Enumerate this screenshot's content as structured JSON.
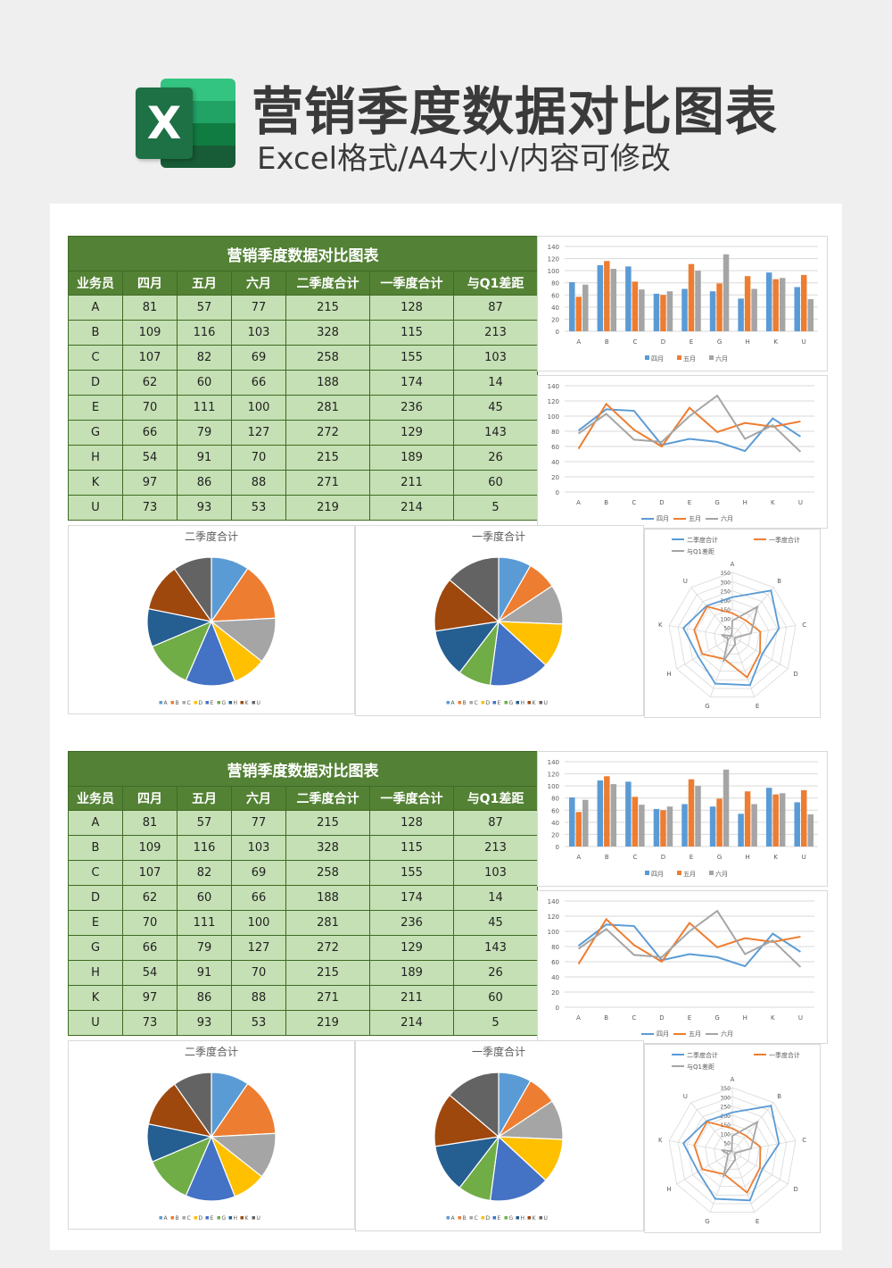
{
  "header": {
    "title": "营销季度数据对比图表",
    "subtitle": "Excel格式/A4大小/内容可修改",
    "logo_letter": "X",
    "logo_colors": [
      "#33c481",
      "#21a366",
      "#107c41",
      "#185c37"
    ]
  },
  "table": {
    "title": "营销季度数据对比图表",
    "columns": [
      "业务员",
      "四月",
      "五月",
      "六月",
      "二季度合计",
      "一季度合计",
      "与Q1差距"
    ],
    "rows": [
      [
        "A",
        "81",
        "57",
        "77",
        "215",
        "128",
        "87"
      ],
      [
        "B",
        "109",
        "116",
        "103",
        "328",
        "115",
        "213"
      ],
      [
        "C",
        "107",
        "82",
        "69",
        "258",
        "155",
        "103"
      ],
      [
        "D",
        "62",
        "60",
        "66",
        "188",
        "174",
        "14"
      ],
      [
        "E",
        "70",
        "111",
        "100",
        "281",
        "236",
        "45"
      ],
      [
        "G",
        "66",
        "79",
        "127",
        "272",
        "129",
        "143"
      ],
      [
        "H",
        "54",
        "91",
        "70",
        "215",
        "189",
        "26"
      ],
      [
        "K",
        "97",
        "86",
        "88",
        "271",
        "211",
        "60"
      ],
      [
        "U",
        "73",
        "93",
        "53",
        "219",
        "214",
        "5"
      ]
    ]
  },
  "colors": {
    "series": [
      "#5b9bd5",
      "#ed7d31",
      "#a5a5a5"
    ],
    "pie": [
      "#5b9bd5",
      "#ed7d31",
      "#a5a5a5",
      "#ffc000",
      "#4472c4",
      "#70ad47",
      "#255e91",
      "#9e480e",
      "#636363"
    ],
    "table_header": "#538135",
    "table_cell": "#c5e0b4"
  },
  "chart_data": [
    {
      "type": "bar",
      "categories": [
        "A",
        "B",
        "C",
        "D",
        "E",
        "G",
        "H",
        "K",
        "U"
      ],
      "series": [
        {
          "name": "四月",
          "values": [
            81,
            109,
            107,
            62,
            70,
            66,
            54,
            97,
            73
          ]
        },
        {
          "name": "五月",
          "values": [
            57,
            116,
            82,
            60,
            111,
            79,
            91,
            86,
            93
          ]
        },
        {
          "name": "六月",
          "values": [
            77,
            103,
            69,
            66,
            100,
            127,
            70,
            88,
            53
          ]
        }
      ],
      "yticks": [
        "0",
        "20",
        "40",
        "60",
        "80",
        "100",
        "120",
        "140"
      ],
      "ylim": [
        0,
        140
      ],
      "grid": true,
      "legend": "bottom"
    },
    {
      "type": "line",
      "categories": [
        "A",
        "B",
        "C",
        "D",
        "E",
        "G",
        "H",
        "K",
        "U"
      ],
      "series": [
        {
          "name": "四月",
          "values": [
            81,
            109,
            107,
            62,
            70,
            66,
            54,
            97,
            73
          ]
        },
        {
          "name": "五月",
          "values": [
            57,
            116,
            82,
            60,
            111,
            79,
            91,
            86,
            93
          ]
        },
        {
          "name": "六月",
          "values": [
            77,
            103,
            69,
            66,
            100,
            127,
            70,
            88,
            53
          ]
        }
      ],
      "yticks": [
        "0",
        "20",
        "40",
        "60",
        "80",
        "100",
        "120",
        "140"
      ],
      "ylim": [
        0,
        140
      ],
      "grid": true,
      "legend": "bottom"
    },
    {
      "type": "pie",
      "title": "二季度合计",
      "categories": [
        "A",
        "B",
        "C",
        "D",
        "E",
        "G",
        "H",
        "K",
        "U"
      ],
      "values": [
        215,
        328,
        258,
        188,
        281,
        272,
        215,
        271,
        219
      ],
      "legend": "bottom"
    },
    {
      "type": "pie",
      "title": "一季度合计",
      "categories": [
        "A",
        "B",
        "C",
        "D",
        "E",
        "G",
        "H",
        "K",
        "U"
      ],
      "values": [
        128,
        115,
        155,
        174,
        236,
        129,
        189,
        211,
        214
      ],
      "legend": "bottom"
    },
    {
      "type": "radar",
      "categories": [
        "A",
        "B",
        "C",
        "D",
        "E",
        "G",
        "H",
        "K",
        "U"
      ],
      "series": [
        {
          "name": "二季度合计",
          "values": [
            215,
            328,
            258,
            188,
            281,
            272,
            215,
            271,
            219
          ]
        },
        {
          "name": "一季度合计",
          "values": [
            128,
            115,
            155,
            174,
            236,
            129,
            189,
            211,
            214
          ]
        },
        {
          "name": "与Q1差距",
          "values": [
            87,
            213,
            103,
            14,
            45,
            143,
            26,
            60,
            5
          ]
        }
      ],
      "rticks": [
        "0",
        "50",
        "100",
        "150",
        "200",
        "250",
        "300",
        "350"
      ],
      "rlim": [
        0,
        350
      ],
      "legend": "top"
    }
  ]
}
